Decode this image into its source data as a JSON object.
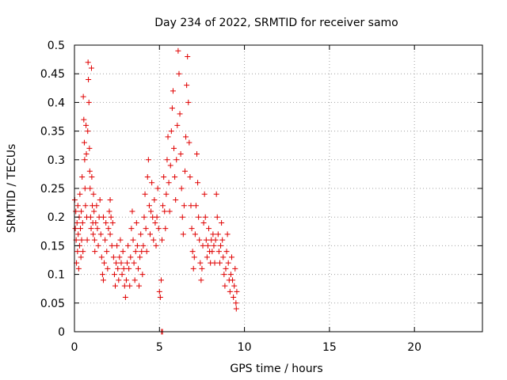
{
  "chart_data": {
    "type": "scatter",
    "title": "Day 234 of 2022, SRMTID for receiver samo",
    "xlabel": "GPS time / hours",
    "ylabel": "SRMTID / TECUs",
    "xlim": [
      0,
      24
    ],
    "ylim": [
      0,
      0.5
    ],
    "x_ticks": [
      0,
      5,
      10,
      15,
      20
    ],
    "x_tick_labels": [
      "0",
      "5",
      "10",
      "15",
      "20"
    ],
    "y_ticks": [
      0,
      0.05,
      0.1,
      0.15,
      0.2,
      0.25,
      0.3,
      0.35,
      0.4,
      0.45,
      0.5
    ],
    "y_tick_labels": [
      "0",
      "0.05",
      "0.1",
      "0.15",
      "0.2",
      "0.25",
      "0.3",
      "0.35",
      "0.4",
      "0.45",
      "0.5"
    ],
    "grid": true,
    "marker": "plus",
    "marker_color": "#e00000",
    "series": [
      {
        "name": "SRMTID",
        "points": [
          [
            0.02,
            0.23
          ],
          [
            0.05,
            0.18
          ],
          [
            0.08,
            0.21
          ],
          [
            0.1,
            0.16
          ],
          [
            0.12,
            0.12
          ],
          [
            0.15,
            0.19
          ],
          [
            0.18,
            0.14
          ],
          [
            0.2,
            0.22
          ],
          [
            0.22,
            0.17
          ],
          [
            0.25,
            0.11
          ],
          [
            0.28,
            0.2
          ],
          [
            0.3,
            0.15
          ],
          [
            0.32,
            0.24
          ],
          [
            0.35,
            0.18
          ],
          [
            0.38,
            0.13
          ],
          [
            0.4,
            0.21
          ],
          [
            0.42,
            0.16
          ],
          [
            0.45,
            0.27
          ],
          [
            0.48,
            0.19
          ],
          [
            0.5,
            0.14
          ],
          [
            0.52,
            0.41
          ],
          [
            0.55,
            0.37
          ],
          [
            0.58,
            0.33
          ],
          [
            0.6,
            0.3
          ],
          [
            0.62,
            0.25
          ],
          [
            0.65,
            0.22
          ],
          [
            0.68,
            0.36
          ],
          [
            0.7,
            0.31
          ],
          [
            0.72,
            0.2
          ],
          [
            0.75,
            0.16
          ],
          [
            0.78,
            0.35
          ],
          [
            0.8,
            0.47
          ],
          [
            0.82,
            0.44
          ],
          [
            0.85,
            0.4
          ],
          [
            0.88,
            0.32
          ],
          [
            0.9,
            0.28
          ],
          [
            0.92,
            0.25
          ],
          [
            0.95,
            0.2
          ],
          [
            0.98,
            0.18
          ],
          [
            1.0,
            0.46
          ],
          [
            1.02,
            0.27
          ],
          [
            1.05,
            0.22
          ],
          [
            1.08,
            0.19
          ],
          [
            1.1,
            0.17
          ],
          [
            1.12,
            0.24
          ],
          [
            1.15,
            0.21
          ],
          [
            1.18,
            0.16
          ],
          [
            1.2,
            0.14
          ],
          [
            1.25,
            0.19
          ],
          [
            1.3,
            0.22
          ],
          [
            1.35,
            0.18
          ],
          [
            1.4,
            0.15
          ],
          [
            1.45,
            0.2
          ],
          [
            1.5,
            0.23
          ],
          [
            1.55,
            0.17
          ],
          [
            1.6,
            0.13
          ],
          [
            1.65,
            0.1
          ],
          [
            1.7,
            0.09
          ],
          [
            1.75,
            0.12
          ],
          [
            1.8,
            0.16
          ],
          [
            1.85,
            0.19
          ],
          [
            1.9,
            0.14
          ],
          [
            1.95,
            0.11
          ],
          [
            2.0,
            0.18
          ],
          [
            2.05,
            0.21
          ],
          [
            2.1,
            0.17
          ],
          [
            2.15,
            0.2
          ],
          [
            2.2,
            0.15
          ],
          [
            2.25,
            0.19
          ],
          [
            2.3,
            0.13
          ],
          [
            2.35,
            0.1
          ],
          [
            2.4,
            0.08
          ],
          [
            2.45,
            0.12
          ],
          [
            2.5,
            0.15
          ],
          [
            2.55,
            0.11
          ],
          [
            2.6,
            0.09
          ],
          [
            2.65,
            0.13
          ],
          [
            2.7,
            0.16
          ],
          [
            2.75,
            0.12
          ],
          [
            2.8,
            0.1
          ],
          [
            2.85,
            0.14
          ],
          [
            2.9,
            0.11
          ],
          [
            2.95,
            0.08
          ],
          [
            3.0,
            0.06
          ],
          [
            3.05,
            0.09
          ],
          [
            3.1,
            0.12
          ],
          [
            3.15,
            0.15
          ],
          [
            3.2,
            0.11
          ],
          [
            3.25,
            0.08
          ],
          [
            3.3,
            0.13
          ],
          [
            3.35,
            0.18
          ],
          [
            3.4,
            0.21
          ],
          [
            3.45,
            0.16
          ],
          [
            3.5,
            0.12
          ],
          [
            3.55,
            0.09
          ],
          [
            3.6,
            0.14
          ],
          [
            3.65,
            0.19
          ],
          [
            3.7,
            0.15
          ],
          [
            3.75,
            0.11
          ],
          [
            3.8,
            0.08
          ],
          [
            3.85,
            0.13
          ],
          [
            3.9,
            0.17
          ],
          [
            3.95,
            0.14
          ],
          [
            4.0,
            0.1
          ],
          [
            4.05,
            0.15
          ],
          [
            4.1,
            0.2
          ],
          [
            4.15,
            0.24
          ],
          [
            4.2,
            0.18
          ],
          [
            4.25,
            0.14
          ],
          [
            4.3,
            0.27
          ],
          [
            4.35,
            0.3
          ],
          [
            4.4,
            0.22
          ],
          [
            4.45,
            0.17
          ],
          [
            4.5,
            0.21
          ],
          [
            4.55,
            0.26
          ],
          [
            4.6,
            0.2
          ],
          [
            4.65,
            0.16
          ],
          [
            4.7,
            0.23
          ],
          [
            4.75,
            0.19
          ],
          [
            4.8,
            0.15
          ],
          [
            4.85,
            0.2
          ],
          [
            4.9,
            0.25
          ],
          [
            4.95,
            0.18
          ],
          [
            5.0,
            0.07
          ],
          [
            5.05,
            0.06
          ],
          [
            5.1,
            0.09
          ],
          [
            5.15,
            0.16
          ],
          [
            5.2,
            0.22
          ],
          [
            5.25,
            0.27
          ],
          [
            5.3,
            0.21
          ],
          [
            5.35,
            0.18
          ],
          [
            5.4,
            0.24
          ],
          [
            5.45,
            0.3
          ],
          [
            5.5,
            0.34
          ],
          [
            5.55,
            0.26
          ],
          [
            5.6,
            0.21
          ],
          [
            5.65,
            0.29
          ],
          [
            5.7,
            0.35
          ],
          [
            5.75,
            0.39
          ],
          [
            5.8,
            0.42
          ],
          [
            5.85,
            0.32
          ],
          [
            5.9,
            0.27
          ],
          [
            5.95,
            0.23
          ],
          [
            6.0,
            0.3
          ],
          [
            6.05,
            0.36
          ],
          [
            6.1,
            0.49
          ],
          [
            6.15,
            0.45
          ],
          [
            6.2,
            0.38
          ],
          [
            6.25,
            0.31
          ],
          [
            6.3,
            0.25
          ],
          [
            6.35,
            0.2
          ],
          [
            6.4,
            0.17
          ],
          [
            6.45,
            0.22
          ],
          [
            6.5,
            0.28
          ],
          [
            6.55,
            0.34
          ],
          [
            6.6,
            0.43
          ],
          [
            6.65,
            0.48
          ],
          [
            6.7,
            0.4
          ],
          [
            6.75,
            0.33
          ],
          [
            6.8,
            0.27
          ],
          [
            6.85,
            0.22
          ],
          [
            6.9,
            0.18
          ],
          [
            6.95,
            0.14
          ],
          [
            7.0,
            0.11
          ],
          [
            7.05,
            0.13
          ],
          [
            7.1,
            0.17
          ],
          [
            7.15,
            0.22
          ],
          [
            7.2,
            0.31
          ],
          [
            7.25,
            0.26
          ],
          [
            7.3,
            0.2
          ],
          [
            7.35,
            0.16
          ],
          [
            7.4,
            0.12
          ],
          [
            7.45,
            0.09
          ],
          [
            7.5,
            0.11
          ],
          [
            7.55,
            0.15
          ],
          [
            7.6,
            0.19
          ],
          [
            7.65,
            0.24
          ],
          [
            7.7,
            0.2
          ],
          [
            7.75,
            0.16
          ],
          [
            7.8,
            0.13
          ],
          [
            7.85,
            0.15
          ],
          [
            7.9,
            0.18
          ],
          [
            7.95,
            0.14
          ],
          [
            8.0,
            0.12
          ],
          [
            8.05,
            0.16
          ],
          [
            8.1,
            0.14
          ],
          [
            8.15,
            0.17
          ],
          [
            8.2,
            0.15
          ],
          [
            8.25,
            0.12
          ],
          [
            8.3,
            0.16
          ],
          [
            8.35,
            0.24
          ],
          [
            8.4,
            0.2
          ],
          [
            8.45,
            0.17
          ],
          [
            8.5,
            0.14
          ],
          [
            8.55,
            0.12
          ],
          [
            8.6,
            0.15
          ],
          [
            8.65,
            0.19
          ],
          [
            8.7,
            0.16
          ],
          [
            8.75,
            0.13
          ],
          [
            8.8,
            0.1
          ],
          [
            8.85,
            0.08
          ],
          [
            8.9,
            0.11
          ],
          [
            8.95,
            0.14
          ],
          [
            9.0,
            0.17
          ],
          [
            9.05,
            0.12
          ],
          [
            9.1,
            0.09
          ],
          [
            9.15,
            0.07
          ],
          [
            9.2,
            0.1
          ],
          [
            9.25,
            0.13
          ],
          [
            9.3,
            0.09
          ],
          [
            9.35,
            0.06
          ],
          [
            9.4,
            0.08
          ],
          [
            9.45,
            0.11
          ],
          [
            9.5,
            0.05
          ],
          [
            9.52,
            0.04
          ],
          [
            9.55,
            0.07
          ],
          [
            5.12,
            0.0
          ],
          [
            5.18,
            0.0
          ],
          [
            2.1,
            0.23
          ],
          [
            1.7,
            0.2
          ]
        ]
      }
    ]
  }
}
